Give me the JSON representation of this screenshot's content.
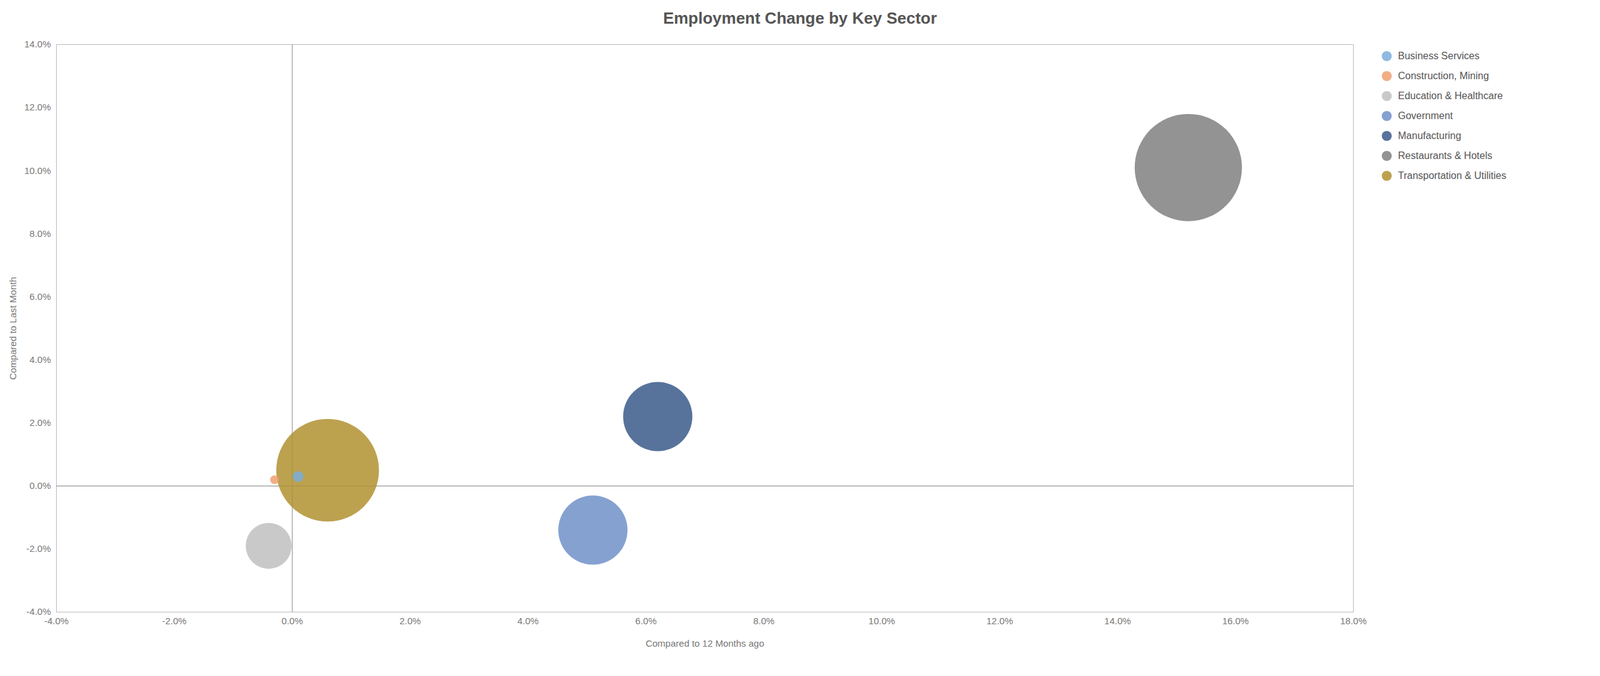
{
  "chart_data": {
    "type": "bubble",
    "title": "Employment Change by Key Sector",
    "xlabel": "Compared to 12 Months ago",
    "ylabel": "Compared to Last Month",
    "xlim": [
      -0.04,
      0.18
    ],
    "ylim": [
      -0.04,
      0.14
    ],
    "xticks": [
      {
        "value": -0.04,
        "label": "-4.0%"
      },
      {
        "value": -0.02,
        "label": "-2.0%"
      },
      {
        "value": 0.0,
        "label": "0.0%"
      },
      {
        "value": 0.02,
        "label": "2.0%"
      },
      {
        "value": 0.04,
        "label": "4.0%"
      },
      {
        "value": 0.06,
        "label": "6.0%"
      },
      {
        "value": 0.08,
        "label": "8.0%"
      },
      {
        "value": 0.1,
        "label": "10.0%"
      },
      {
        "value": 0.12,
        "label": "12.0%"
      },
      {
        "value": 0.14,
        "label": "14.0%"
      },
      {
        "value": 0.16,
        "label": "16.0%"
      },
      {
        "value": 0.18,
        "label": "18.0%"
      }
    ],
    "yticks": [
      {
        "value": -0.04,
        "label": "-4.0%"
      },
      {
        "value": -0.02,
        "label": "-2.0%"
      },
      {
        "value": 0.0,
        "label": "0.0%"
      },
      {
        "value": 0.02,
        "label": "2.0%"
      },
      {
        "value": 0.04,
        "label": "4.0%"
      },
      {
        "value": 0.06,
        "label": "6.0%"
      },
      {
        "value": 0.08,
        "label": "8.0%"
      },
      {
        "value": 0.1,
        "label": "10.0%"
      },
      {
        "value": 0.12,
        "label": "12.0%"
      },
      {
        "value": 0.14,
        "label": "14.0%"
      }
    ],
    "reference_lines": {
      "x": [
        0
      ],
      "y": [
        0
      ]
    },
    "grid": false,
    "legend": "right",
    "series": [
      {
        "name": "Business Services",
        "color": "#7aaedc",
        "x": [
          0.001
        ],
        "y": [
          0.003
        ],
        "size": [
          120
        ]
      },
      {
        "name": "Construction, Mining",
        "color": "#f0a070",
        "x": [
          -0.003
        ],
        "y": [
          0.002
        ],
        "size": [
          80
        ]
      },
      {
        "name": "Education & Healthcare",
        "color": "#c0c0c0",
        "x": [
          -0.004
        ],
        "y": [
          -0.019
        ],
        "size": [
          2200
        ]
      },
      {
        "name": "Government",
        "color": "#7090c8",
        "x": [
          0.051
        ],
        "y": [
          -0.014
        ],
        "size": [
          5000
        ]
      },
      {
        "name": "Manufacturing",
        "color": "#3a5a8a",
        "x": [
          0.062
        ],
        "y": [
          0.022
        ],
        "size": [
          5000
        ]
      },
      {
        "name": "Restaurants & Hotels",
        "color": "#808080",
        "x": [
          0.152
        ],
        "y": [
          0.101
        ],
        "size": [
          12000
        ]
      },
      {
        "name": "Transportation & Utilities",
        "color": "#b09030",
        "x": [
          0.006
        ],
        "y": [
          0.005
        ],
        "size": [
          11000
        ]
      }
    ]
  }
}
